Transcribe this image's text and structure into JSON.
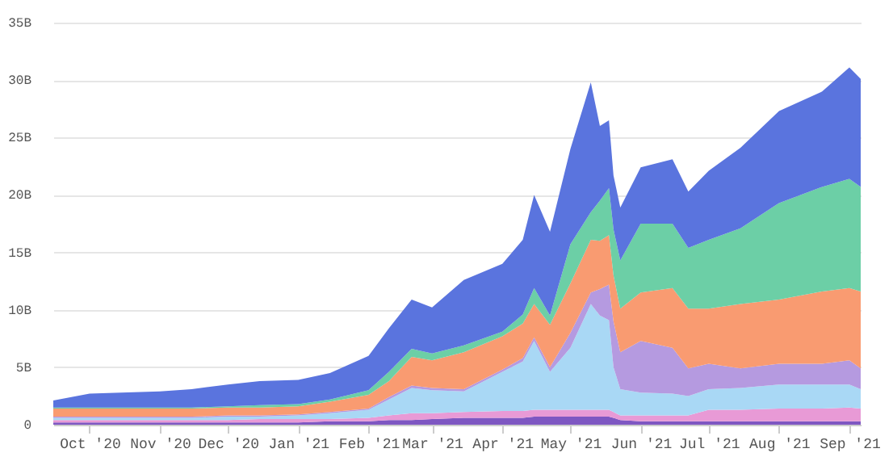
{
  "chart_data": {
    "type": "area",
    "stacked": true,
    "legend": false,
    "grid": "y",
    "x": [
      "2020-09-15",
      "2020-10-01",
      "2020-10-15",
      "2020-11-01",
      "2020-11-15",
      "2020-12-01",
      "2020-12-15",
      "2021-01-01",
      "2021-01-15",
      "2021-02-01",
      "2021-02-10",
      "2021-02-20",
      "2021-03-01",
      "2021-03-15",
      "2021-04-01",
      "2021-04-10",
      "2021-04-15",
      "2021-04-22",
      "2021-05-01",
      "2021-05-10",
      "2021-05-14",
      "2021-05-18",
      "2021-05-20",
      "2021-05-23",
      "2021-06-01",
      "2021-06-15",
      "2021-06-22",
      "2021-07-01",
      "2021-07-15",
      "2021-08-01",
      "2021-08-20",
      "2021-09-01",
      "2021-09-06"
    ],
    "series": [
      {
        "color": "#7e57c2",
        "values": [
          0.2,
          0.2,
          0.2,
          0.2,
          0.2,
          0.2,
          0.2,
          0.2,
          0.3,
          0.3,
          0.4,
          0.4,
          0.5,
          0.6,
          0.6,
          0.6,
          0.7,
          0.7,
          0.7,
          0.7,
          0.7,
          0.7,
          0.6,
          0.4,
          0.3,
          0.3,
          0.3,
          0.3,
          0.3,
          0.3,
          0.3,
          0.3,
          0.3
        ]
      },
      {
        "color": "#e89ad6",
        "values": [
          0.2,
          0.2,
          0.2,
          0.2,
          0.2,
          0.2,
          0.3,
          0.3,
          0.2,
          0.3,
          0.4,
          0.6,
          0.5,
          0.5,
          0.6,
          0.6,
          0.6,
          0.6,
          0.6,
          0.6,
          0.6,
          0.6,
          0.5,
          0.4,
          0.5,
          0.5,
          0.5,
          1.0,
          1.0,
          1.1,
          1.1,
          1.2,
          1.1
        ]
      },
      {
        "color": "#a9d8f5",
        "values": [
          0.2,
          0.2,
          0.2,
          0.2,
          0.2,
          0.3,
          0.2,
          0.3,
          0.5,
          0.7,
          1.4,
          2.2,
          2.0,
          1.8,
          3.4,
          4.3,
          6.0,
          3.3,
          5.4,
          9.2,
          8.2,
          7.8,
          3.9,
          2.3,
          2.0,
          1.9,
          1.7,
          1.8,
          1.9,
          2.1,
          2.1,
          2.0,
          1.7
        ]
      },
      {
        "color": "#b59ae0",
        "values": [
          0.1,
          0.1,
          0.1,
          0.1,
          0.1,
          0.1,
          0.1,
          0.1,
          0.1,
          0.1,
          0.2,
          0.2,
          0.2,
          0.2,
          0.2,
          0.3,
          0.3,
          0.4,
          1.3,
          1.0,
          2.3,
          3.1,
          4.0,
          3.2,
          4.5,
          4.0,
          2.4,
          2.2,
          1.7,
          1.8,
          1.8,
          2.1,
          1.8
        ]
      },
      {
        "color": "#f99b71",
        "values": [
          0.7,
          0.7,
          0.7,
          0.7,
          0.7,
          0.7,
          0.7,
          0.7,
          0.9,
          1.2,
          1.4,
          2.5,
          2.4,
          3.2,
          2.9,
          3.0,
          2.9,
          3.7,
          4.3,
          4.6,
          4.2,
          4.3,
          4.0,
          3.8,
          4.2,
          5.2,
          5.2,
          4.8,
          5.6,
          5.6,
          6.3,
          6.3,
          6.7
        ]
      },
      {
        "color": "#6ccfa6",
        "values": [
          0.1,
          0.1,
          0.1,
          0.1,
          0.1,
          0.1,
          0.2,
          0.2,
          0.2,
          0.4,
          0.8,
          0.7,
          0.6,
          0.6,
          0.4,
          0.8,
          1.4,
          0.8,
          3.4,
          2.4,
          3.5,
          4.1,
          4.0,
          4.2,
          6.0,
          5.6,
          5.3,
          6.0,
          6.6,
          8.4,
          9.1,
          9.5,
          9.1
        ]
      },
      {
        "color": "#5a74de",
        "values": [
          0.6,
          1.2,
          1.3,
          1.4,
          1.6,
          1.9,
          2.1,
          2.1,
          2.3,
          3.0,
          3.8,
          4.3,
          4.0,
          5.7,
          5.9,
          6.5,
          8.1,
          7.3,
          8.3,
          11.3,
          6.5,
          5.9,
          4.7,
          4.6,
          4.9,
          5.6,
          4.9,
          6.0,
          7.0,
          8.0,
          8.3,
          9.7,
          9.4
        ]
      }
    ],
    "xlim": [
      "2020-09-15",
      "2021-09-06"
    ],
    "xticks": [
      {
        "value": "2020-10-01",
        "label": "Oct '20"
      },
      {
        "value": "2020-11-01",
        "label": "Nov '20"
      },
      {
        "value": "2020-12-01",
        "label": "Dec '20"
      },
      {
        "value": "2021-01-01",
        "label": "Jan '21"
      },
      {
        "value": "2021-02-01",
        "label": "Feb '21"
      },
      {
        "value": "2021-03-01",
        "label": "Mar '21"
      },
      {
        "value": "2021-04-01",
        "label": "Apr '21"
      },
      {
        "value": "2021-05-01",
        "label": "May '21"
      },
      {
        "value": "2021-06-01",
        "label": "Jun '21"
      },
      {
        "value": "2021-07-01",
        "label": "Jul '21"
      },
      {
        "value": "2021-08-01",
        "label": "Aug '21"
      },
      {
        "value": "2021-09-01",
        "label": "Sep '21"
      }
    ],
    "ylim": [
      0,
      35
    ],
    "yticks": [
      0,
      {
        "value": 5,
        "label": "5B"
      },
      {
        "value": 10,
        "label": "10B"
      },
      {
        "value": 15,
        "label": "15B"
      },
      {
        "value": 20,
        "label": "20B"
      },
      {
        "value": 25,
        "label": "25B"
      },
      {
        "value": 30,
        "label": "30B"
      },
      {
        "value": 35,
        "label": "35B"
      }
    ]
  }
}
